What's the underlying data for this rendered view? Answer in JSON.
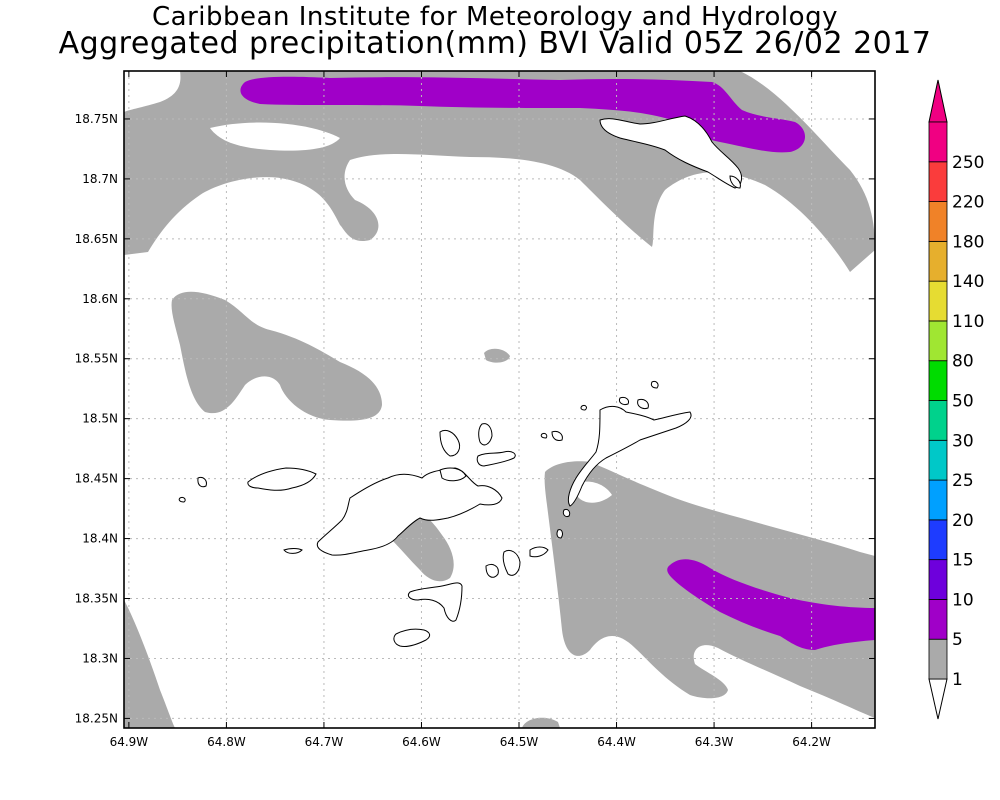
{
  "title_line1": "Caribbean Institute for Meteorology and Hydrology",
  "title_line2": "Aggregated precipitation(mm) BVI Valid 05Z 26/02 2017",
  "map": {
    "lon_range": [
      -64.905,
      -64.135
    ],
    "lat_range": [
      18.242,
      18.79
    ],
    "grid": true,
    "x_ticks": [
      "64.9W",
      "64.8W",
      "64.7W",
      "64.6W",
      "64.5W",
      "64.4W",
      "64.3W",
      "64.2W"
    ],
    "x_tick_values": [
      -64.9,
      -64.8,
      -64.7,
      -64.6,
      -64.5,
      -64.4,
      -64.3,
      -64.2
    ],
    "y_ticks": [
      "18.75N",
      "18.7N",
      "18.65N",
      "18.6N",
      "18.55N",
      "18.5N",
      "18.45N",
      "18.4N",
      "18.35N",
      "18.3N",
      "18.25N"
    ],
    "y_tick_values": [
      18.75,
      18.7,
      18.65,
      18.6,
      18.55,
      18.5,
      18.45,
      18.4,
      18.35,
      18.3,
      18.25
    ]
  },
  "colorbar": {
    "labels": [
      "1",
      "5",
      "10",
      "15",
      "20",
      "25",
      "30",
      "50",
      "80",
      "110",
      "140",
      "180",
      "220",
      "250"
    ],
    "colors": [
      "#aaaaaa",
      "#a000c8",
      "#6e00dc",
      "#1e3cff",
      "#00a0ff",
      "#00c8c8",
      "#00d28c",
      "#00dc00",
      "#a0e632",
      "#e6dc32",
      "#e6af2d",
      "#f08228",
      "#fa3c3c",
      "#f00082"
    ],
    "under_color": "#ffffff",
    "over_color": "#f00082"
  },
  "colors": {
    "gray_5mm": "#aaaaaa",
    "purple_10mm": "#a000c8",
    "land": "#ffffff",
    "coast": "#000000",
    "grid": "#bbbbbb"
  }
}
